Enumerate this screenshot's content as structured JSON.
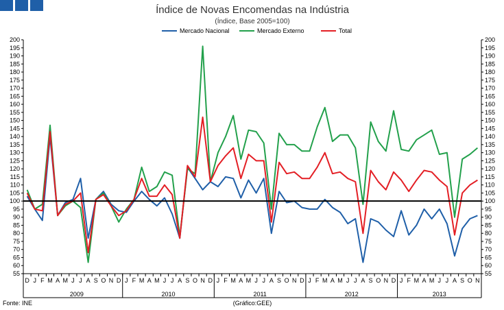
{
  "brand": {
    "color": "#1f5fa8"
  },
  "footer": {
    "source": "Fonte: INE",
    "credit": "(Gráfico:GEE)"
  },
  "chart_data": {
    "type": "line",
    "title": "Índice de Novas Encomendas na Indústria",
    "subtitle": "(Índice, Base 2005=100)",
    "xlabel": "",
    "ylabel": "",
    "ylim": [
      55,
      200
    ],
    "ytick_step": 5,
    "grid": false,
    "legend_position": "top-center",
    "reference_line": {
      "value": 100,
      "color": "#000000"
    },
    "year_groups": [
      {
        "label": "2009",
        "start": 1,
        "end": 12
      },
      {
        "label": "2010",
        "start": 13,
        "end": 24
      },
      {
        "label": "2011",
        "start": 25,
        "end": 36
      },
      {
        "label": "2012",
        "start": 37,
        "end": 48
      },
      {
        "label": "2013",
        "start": 49,
        "end": 59
      }
    ],
    "categories": [
      "D",
      "J",
      "F",
      "M",
      "A",
      "M",
      "J",
      "J",
      "A",
      "S",
      "O",
      "N",
      "D",
      "J",
      "F",
      "M",
      "A",
      "M",
      "J",
      "J",
      "A",
      "S",
      "O",
      "N",
      "D",
      "J",
      "F",
      "M",
      "A",
      "M",
      "J",
      "J",
      "A",
      "S",
      "O",
      "N",
      "D",
      "J",
      "F",
      "M",
      "A",
      "M",
      "J",
      "J",
      "A",
      "S",
      "O",
      "N",
      "D",
      "J",
      "F",
      "M",
      "A",
      "M",
      "J",
      "J",
      "A",
      "S",
      "O",
      "N"
    ],
    "series": [
      {
        "name": "Mercado Nacional",
        "color": "#1f5fa8",
        "values": [
          103,
          95,
          88,
          140,
          91,
          99,
          101,
          114,
          77,
          101,
          106,
          98,
          94,
          93,
          100,
          106,
          101,
          97,
          102,
          92,
          77,
          121,
          114,
          107,
          112,
          109,
          115,
          114,
          102,
          113,
          105,
          114,
          80,
          106,
          99,
          100,
          96,
          95,
          95,
          101,
          96,
          93,
          86,
          89,
          62,
          89,
          87,
          82,
          78,
          94,
          79,
          85,
          95,
          89,
          95,
          86,
          66,
          83,
          89,
          91
        ]
      },
      {
        "name": "Mercado Externo",
        "color": "#22a04b",
        "values": [
          107,
          95,
          98,
          147,
          91,
          97,
          100,
          96,
          62,
          101,
          105,
          97,
          87,
          95,
          101,
          121,
          106,
          109,
          118,
          116,
          78,
          120,
          117,
          196,
          112,
          130,
          140,
          153,
          126,
          144,
          143,
          136,
          95,
          142,
          135,
          135,
          131,
          131,
          146,
          158,
          137,
          141,
          141,
          133,
          98,
          149,
          137,
          131,
          156,
          132,
          131,
          138,
          141,
          144,
          129,
          130,
          90,
          126,
          129,
          133
        ]
      },
      {
        "name": "Total",
        "color": "#e31e24",
        "values": [
          105,
          95,
          94,
          143,
          91,
          98,
          100,
          105,
          68,
          101,
          104,
          97,
          91,
          94,
          101,
          114,
          103,
          103,
          110,
          104,
          77,
          122,
          115,
          152,
          112,
          122,
          128,
          133,
          114,
          129,
          125,
          125,
          87,
          124,
          117,
          118,
          114,
          114,
          121,
          130,
          117,
          118,
          114,
          112,
          80,
          119,
          112,
          107,
          118,
          113,
          106,
          113,
          119,
          118,
          113,
          109,
          79,
          105,
          110,
          113
        ]
      }
    ]
  }
}
